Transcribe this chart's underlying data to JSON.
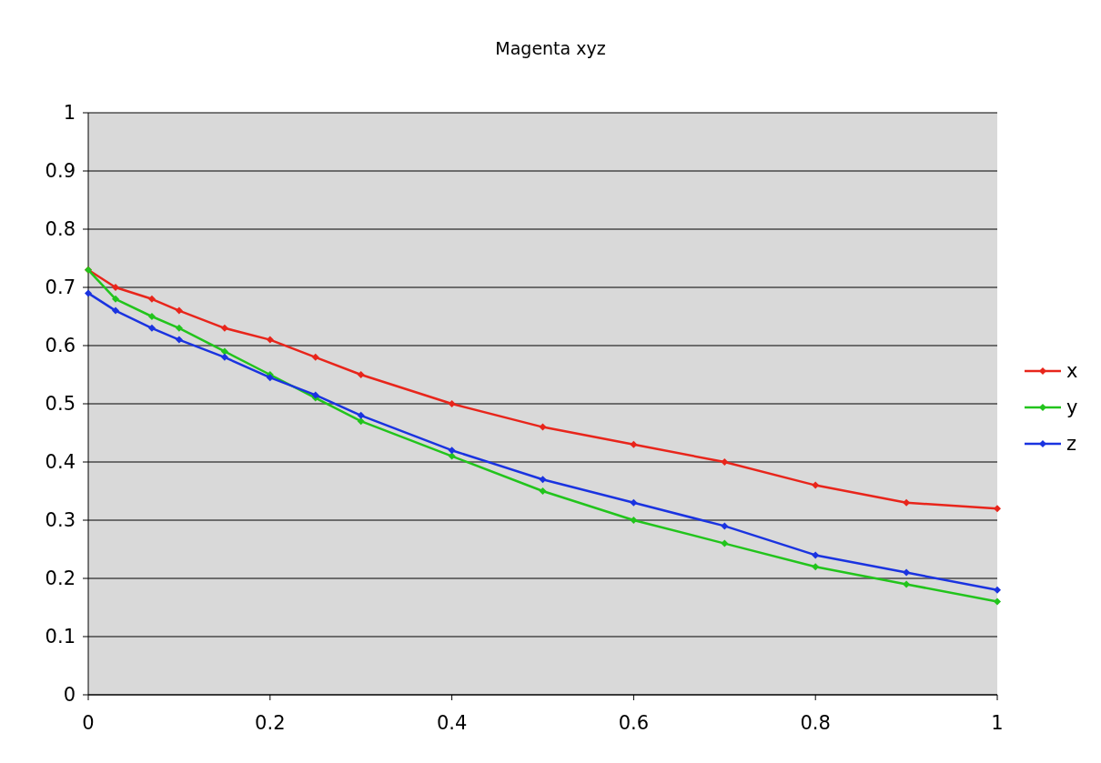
{
  "chart_data": {
    "type": "line",
    "title": "Magenta xyz",
    "x": [
      0,
      0.03,
      0.07,
      0.1,
      0.15,
      0.2,
      0.25,
      0.3,
      0.4,
      0.5,
      0.6,
      0.7,
      0.8,
      0.9,
      1
    ],
    "series": [
      {
        "name": "x",
        "color": "#e8251b",
        "values": [
          0.73,
          0.7,
          0.68,
          0.66,
          0.63,
          0.61,
          0.58,
          0.55,
          0.5,
          0.46,
          0.43,
          0.4,
          0.36,
          0.33,
          0.32
        ]
      },
      {
        "name": "y",
        "color": "#22c41c",
        "values": [
          0.73,
          0.68,
          0.65,
          0.63,
          0.59,
          0.55,
          0.51,
          0.47,
          0.41,
          0.35,
          0.3,
          0.26,
          0.22,
          0.19,
          0.16
        ]
      },
      {
        "name": "z",
        "color": "#1a33e0",
        "values": [
          0.69,
          0.66,
          0.63,
          0.61,
          0.58,
          0.545,
          0.515,
          0.48,
          0.42,
          0.37,
          0.33,
          0.29,
          0.24,
          0.21,
          0.18
        ]
      }
    ],
    "xlim": [
      0,
      1
    ],
    "xticks": [
      0,
      0.2,
      0.4,
      0.6,
      0.8,
      1
    ],
    "ylim": [
      0,
      1
    ],
    "yticks": [
      0,
      0.1,
      0.2,
      0.3,
      0.4,
      0.5,
      0.6,
      0.7,
      0.8,
      0.9,
      1
    ],
    "grid": "y",
    "legend": "right",
    "marker": "diamond",
    "line_style": "solid"
  }
}
